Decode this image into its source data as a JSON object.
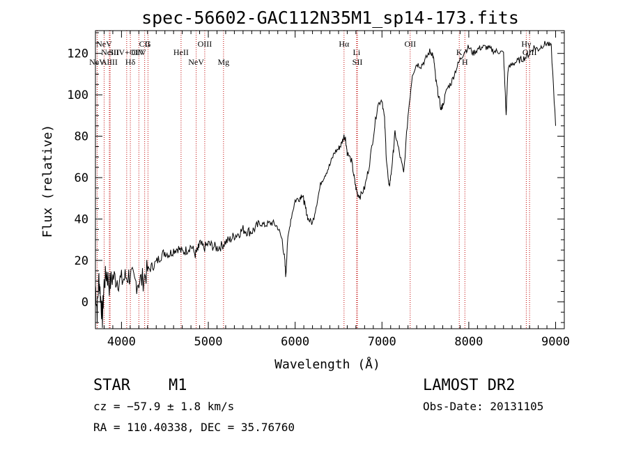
{
  "chart_data": {
    "type": "line",
    "title": "spec-56602-GAC112N35M1_sp14-173.fits",
    "xlabel": "Wavelength (Å)",
    "ylabel": "Flux (relative)",
    "xlim": [
      3700,
      9100
    ],
    "ylim": [
      -13,
      131
    ],
    "xticks": [
      4000,
      5000,
      6000,
      7000,
      8000,
      9000
    ],
    "yticks": [
      0,
      20,
      40,
      60,
      80,
      100,
      120
    ],
    "grid": false,
    "series": [
      {
        "x": [
          3700,
          3720,
          3740,
          3760,
          3780,
          3800,
          3830,
          3860,
          3900,
          3950,
          4000,
          4050,
          4100,
          4150,
          4200,
          4250,
          4300,
          4350,
          4400,
          4450,
          4500,
          4550,
          4600,
          4650,
          4700,
          4750,
          4800,
          4850,
          4880,
          4900,
          4950,
          5000,
          5050,
          5100,
          5150,
          5200,
          5250,
          5300,
          5350,
          5400,
          5450,
          5500,
          5550,
          5600,
          5650,
          5700,
          5750,
          5800,
          5850,
          5880,
          5893,
          5910,
          5950,
          6000,
          6050,
          6080,
          6100,
          6120,
          6150,
          6200,
          6250,
          6300,
          6350,
          6400,
          6450,
          6500,
          6530,
          6563,
          6580,
          6600,
          6650,
          6680,
          6700,
          6720,
          6750,
          6800,
          6850,
          6900,
          6950,
          7000,
          7030,
          7050,
          7080,
          7100,
          7130,
          7150,
          7200,
          7250,
          7300,
          7350,
          7400,
          7450,
          7500,
          7550,
          7580,
          7600,
          7620,
          7650,
          7680,
          7700,
          7750,
          7800,
          7850,
          7900,
          7950,
          8000,
          8050,
          8100,
          8150,
          8200,
          8250,
          8300,
          8350,
          8400,
          8430,
          8450,
          8500,
          8550,
          8600,
          8650,
          8700,
          8750,
          8800,
          8850,
          8900,
          8950,
          9000
        ],
        "values": [
          8,
          -5,
          12,
          2,
          -8,
          9,
          14,
          8,
          12,
          11,
          10,
          12,
          13,
          9,
          10,
          11,
          15,
          17,
          19,
          22,
          24,
          23,
          25,
          26,
          24,
          25,
          27,
          23,
          25,
          28,
          26,
          28,
          27,
          26,
          27,
          29,
          30,
          32,
          33,
          35,
          34,
          34,
          36,
          38,
          37,
          38,
          38,
          36,
          30,
          20,
          12,
          28,
          40,
          49,
          50,
          52,
          49,
          45,
          40,
          38,
          48,
          58,
          62,
          66,
          72,
          74,
          76,
          80,
          79,
          72,
          68,
          60,
          55,
          52,
          51,
          55,
          65,
          80,
          95,
          98,
          88,
          70,
          55,
          60,
          72,
          82,
          72,
          62,
          90,
          110,
          115,
          114,
          117,
          121,
          120,
          116,
          107,
          100,
          93,
          95,
          103,
          106,
          112,
          117,
          121,
          123,
          120,
          122,
          123,
          123,
          122,
          121,
          121,
          120,
          90,
          112,
          115,
          116,
          117,
          118,
          120,
          123,
          122,
          124,
          125,
          123,
          85
        ]
      }
    ],
    "lines": [
      {
        "label": "CII",
        "x": 4267
      },
      {
        "label": "SiIV+OIV",
        "x": 4060
      },
      {
        "label": "Hδ",
        "x": 4102
      },
      {
        "label": "G",
        "x": 4305
      },
      {
        "label": "OIV",
        "x": 4200
      },
      {
        "label": "NeV",
        "x": 4860
      },
      {
        "label": "OIII",
        "x": 4959
      },
      {
        "label": "HeII",
        "x": 4686
      },
      {
        "label": "Mg",
        "x": 5175
      },
      {
        "label": "Hα",
        "x": 6563
      },
      {
        "label": "Li",
        "x": 6708
      },
      {
        "label": "SII",
        "x": 6717
      },
      {
        "label": "OII",
        "x": 7325
      },
      {
        "label": "K",
        "x": 7890
      },
      {
        "label": "H",
        "x": 7955
      },
      {
        "label": "Hγ",
        "x": 8662
      },
      {
        "label": "OIII",
        "x": 8700
      },
      {
        "label": "AlIII",
        "x": 3860
      },
      {
        "label": "NeV",
        "x": 3800
      },
      {
        "label": "NeIII",
        "x": 3869
      },
      {
        "label": "NeV",
        "x": 3720
      }
    ]
  },
  "info": {
    "object_class": "STAR",
    "subclass": "M1",
    "survey": "LAMOST DR2",
    "cz": "cz = −57.9 ± 1.8 km/s",
    "obs_date": "Obs-Date: 20131105",
    "radec": "RA = 110.40338, DEC =  35.76760"
  }
}
